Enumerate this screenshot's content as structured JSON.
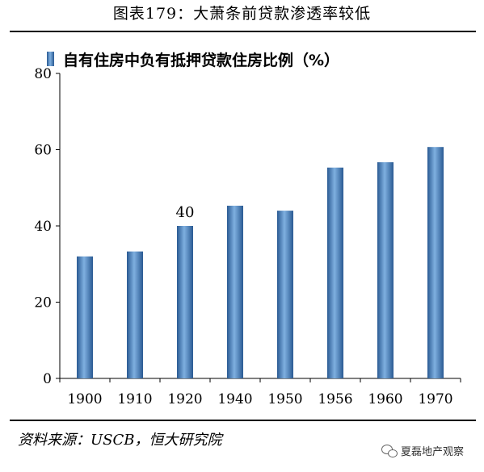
{
  "header": {
    "title": "图表179：大萧条前贷款渗透率较低"
  },
  "chart_data": {
    "type": "bar",
    "legend": {
      "label": "自有住房中负有抵押贷款住房比例（%）",
      "position": "top-left"
    },
    "categories": [
      "1900",
      "1910",
      "1920",
      "1940",
      "1950",
      "1956",
      "1960",
      "1970"
    ],
    "series": [
      {
        "name": "自有住房中负有抵押贷款住房比例（%）",
        "values": [
          32,
          33.3,
          40,
          45.3,
          44,
          55.3,
          56.7,
          60.7
        ]
      }
    ],
    "data_labels": [
      {
        "index": 2,
        "text": "40"
      }
    ],
    "ylim": [
      0,
      80
    ],
    "yticks": [
      "0",
      "20",
      "40",
      "60",
      "80"
    ],
    "grid": false,
    "bar_color": "#3f78b5"
  },
  "footer": {
    "source": "资料来源：USCB，恒大研究院",
    "watermark": "夏磊地产观察",
    "watermark_icon": "wechat-icon"
  }
}
